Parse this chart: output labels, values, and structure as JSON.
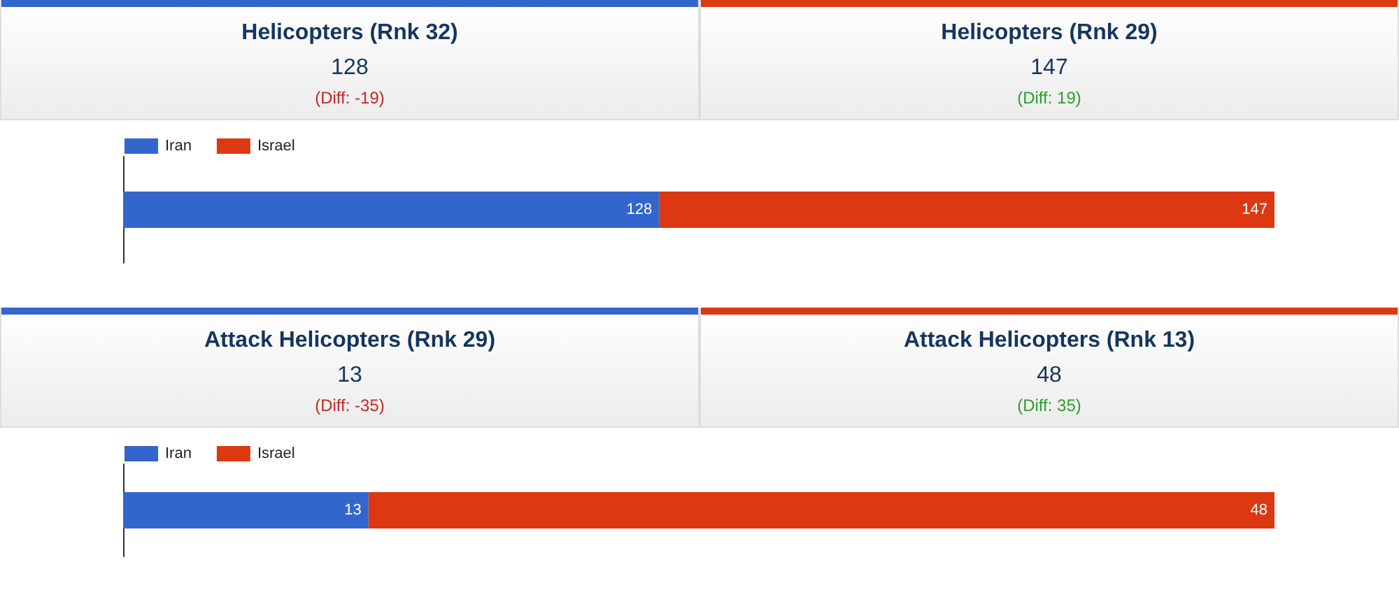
{
  "chart_data": [
    {
      "type": "other",
      "annotations": [
        "Helicopters (Rnk 32)",
        "128",
        "(Diff: -19)",
        "Helicopters (Rnk 29)",
        "147",
        "(Diff: 19)"
      ],
      "colors": [
        "#3366cc",
        "#dc3912"
      ]
    },
    {
      "type": "bar",
      "orientation": "horizontal",
      "stacked": true,
      "categories": [
        null
      ],
      "series": [
        {
          "name": "Iran",
          "color": "#3366cc",
          "values": [
            128
          ]
        },
        {
          "name": "Israel",
          "color": "#dc3912",
          "values": [
            147
          ]
        }
      ],
      "data_labels": true,
      "legend": "top left"
    },
    {
      "type": "other",
      "annotations": [
        "Attack Helicopters (Rnk 29)",
        "13",
        "(Diff: -35)",
        "Attack Helicopters (Rnk 13)",
        "48",
        "(Diff: 35)"
      ],
      "colors": [
        "#3366cc",
        "#dc3912"
      ]
    },
    {
      "type": "bar",
      "orientation": "horizontal",
      "stacked": true,
      "categories": [
        null
      ],
      "series": [
        {
          "name": "Iran",
          "color": "#3366cc",
          "values": [
            13
          ]
        },
        {
          "name": "Israel",
          "color": "#dc3912",
          "values": [
            48
          ]
        }
      ],
      "data_labels": true,
      "legend": "top left"
    }
  ]
}
